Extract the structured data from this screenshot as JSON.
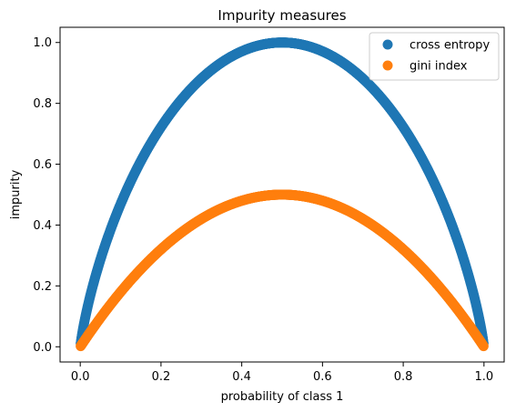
{
  "chart_data": {
    "type": "scatter",
    "title": "Impurity measures",
    "xlabel": "probability of class 1",
    "ylabel": "impurity",
    "xlim": [
      -0.05,
      1.05
    ],
    "ylim": [
      -0.05,
      1.05
    ],
    "xticks": [
      "0.0",
      "0.2",
      "0.4",
      "0.6",
      "0.8",
      "1.0"
    ],
    "yticks": [
      "0.0",
      "0.2",
      "0.4",
      "0.6",
      "0.8",
      "1.0"
    ],
    "grid": false,
    "legend_position": "top-right",
    "x_range": [
      0.001,
      0.999
    ],
    "n_points": 1000,
    "series": [
      {
        "name": "cross entropy",
        "formula": "-p*log2(p)-(1-p)*log2(1-p)",
        "color": "#1f77b4"
      },
      {
        "name": "gini index",
        "formula": "2*p*(1-p)",
        "color": "#ff7f0e"
      }
    ]
  }
}
